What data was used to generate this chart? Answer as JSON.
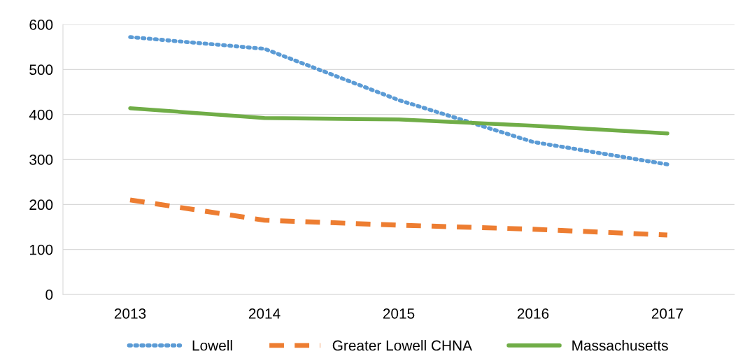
{
  "chart_data": {
    "type": "line",
    "categories": [
      "2013",
      "2014",
      "2015",
      "2016",
      "2017"
    ],
    "series": [
      {
        "name": "Lowell",
        "color": "#5b9bd5",
        "line_style": "dotted",
        "values": [
          572,
          546,
          432,
          339,
          289
        ]
      },
      {
        "name": "Greater Lowell CHNA",
        "color": "#ed7d31",
        "line_style": "dashed",
        "values": [
          210,
          165,
          154,
          145,
          132
        ]
      },
      {
        "name": "Massachusetts",
        "color": "#70ad47",
        "line_style": "solid",
        "values": [
          414,
          392,
          389,
          375,
          358
        ]
      }
    ],
    "ylim": [
      0,
      600
    ],
    "yticks": [
      0,
      100,
      200,
      300,
      400,
      500,
      600
    ],
    "grid": "y",
    "legend": "bottom",
    "marker": "none"
  }
}
